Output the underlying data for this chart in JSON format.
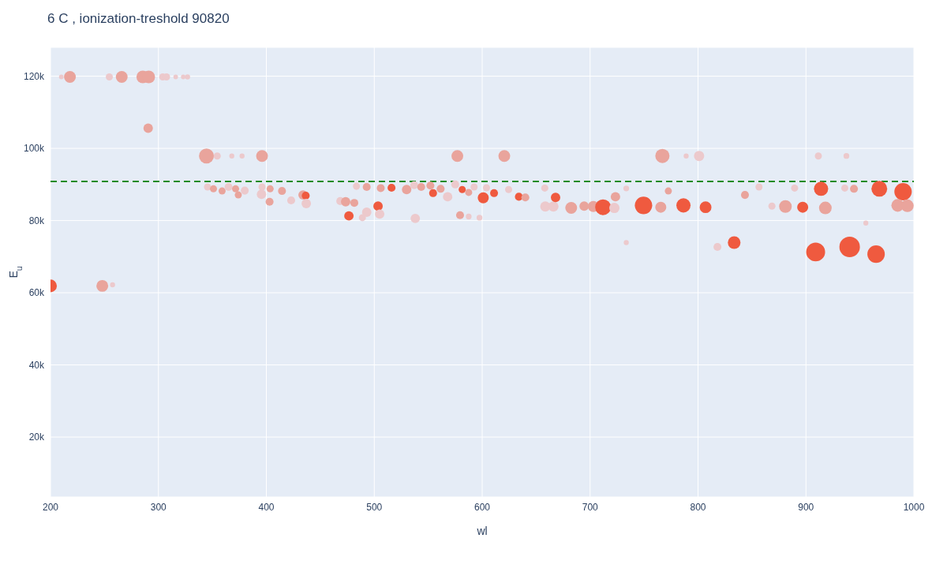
{
  "chart_data": {
    "type": "bubble",
    "title": "6 C , ionization-treshold 90820",
    "xlabel": "wl",
    "ylabel": "E$_{u}$",
    "xlim": [
      200,
      1000
    ],
    "xticks": [
      200,
      300,
      400,
      500,
      600,
      700,
      800,
      900,
      1000
    ],
    "ylim": [
      3400,
      128000
    ],
    "yticks": [
      {
        "value": 20000,
        "label": "20k"
      },
      {
        "value": 40000,
        "label": "40k"
      },
      {
        "value": 60000,
        "label": "60k"
      },
      {
        "value": 80000,
        "label": "80k"
      },
      {
        "value": 100000,
        "label": "100k"
      },
      {
        "value": 120000,
        "label": "120k"
      }
    ],
    "grid": true,
    "ref_lines": [
      {
        "axis": "y",
        "value": 90820,
        "color": "#228b22",
        "line_style": "dashed"
      }
    ],
    "x": [
      210,
      218,
      254.5,
      266,
      285.5,
      291,
      304,
      307.5,
      316,
      323,
      327,
      290.5,
      344.5,
      354.5,
      368,
      377.5,
      396,
      200,
      248,
      257.5,
      345.5,
      351,
      359,
      365,
      371.5,
      374,
      380,
      396,
      395.5,
      403.5,
      403,
      414.5,
      434,
      436.5,
      423,
      437,
      468.5,
      473.5,
      481.5,
      476.5,
      489,
      493,
      503.5,
      505,
      483.5,
      493,
      506,
      516,
      530,
      537,
      543.5,
      552,
      554.5,
      561.5,
      568,
      575,
      581.5,
      587.5,
      592.5,
      601,
      604,
      611,
      538,
      579.5,
      587.5,
      597.5,
      577,
      620.5,
      624.5,
      634,
      640,
      658,
      658.5,
      666,
      668,
      682.5,
      694.5,
      703,
      712,
      722.5,
      723.5,
      733.5,
      749.5,
      765.5,
      786.5,
      807,
      767,
      801,
      789,
      772.5,
      843.5,
      856.5,
      868.5,
      881,
      897,
      918,
      911.5,
      937.5,
      914,
      889.5,
      936,
      944.5,
      968,
      990,
      985,
      994,
      955.5,
      733.5,
      818,
      833.5,
      909,
      940.5,
      965
    ],
    "values": [
      119800,
      119800,
      119800,
      119800,
      119800,
      119800,
      119800,
      119800,
      119800,
      119800,
      119800,
      105600,
      97900,
      97900,
      97900,
      97900,
      97900,
      61900,
      61900,
      62200,
      89300,
      88800,
      88200,
      89300,
      88800,
      87100,
      88300,
      89300,
      87300,
      88800,
      85200,
      88200,
      87100,
      86900,
      85600,
      84700,
      85400,
      85200,
      84900,
      81300,
      80800,
      82300,
      84000,
      81800,
      89500,
      89300,
      89000,
      89100,
      88600,
      89800,
      89300,
      89700,
      87600,
      88800,
      86600,
      90000,
      88600,
      87800,
      89300,
      86300,
      89100,
      87600,
      80600,
      81500,
      81100,
      80800,
      97900,
      97900,
      88600,
      86600,
      86400,
      89000,
      83900,
      83900,
      86400,
      83500,
      84000,
      83900,
      83700,
      83500,
      86600,
      88900,
      84200,
      83700,
      84200,
      83700,
      97900,
      97900,
      97900,
      88200,
      87100,
      89300,
      84000,
      83900,
      83700,
      83500,
      97900,
      97900,
      88800,
      89000,
      89000,
      88800,
      88800,
      88000,
      84200,
      84100,
      79300,
      73900,
      72700,
      73900,
      71300,
      72700,
      70700
    ],
    "sizes": [
      0.05,
      0.33,
      0.12,
      0.33,
      0.38,
      0.38,
      0.12,
      0.12,
      0.05,
      0.05,
      0.06,
      0.21,
      0.53,
      0.12,
      0.06,
      0.06,
      0.33,
      0.38,
      0.33,
      0.06,
      0.12,
      0.12,
      0.12,
      0.15,
      0.12,
      0.12,
      0.15,
      0.12,
      0.21,
      0.12,
      0.15,
      0.15,
      0.21,
      0.15,
      0.15,
      0.21,
      0.15,
      0.21,
      0.15,
      0.21,
      0.12,
      0.21,
      0.21,
      0.21,
      0.12,
      0.15,
      0.15,
      0.15,
      0.21,
      0.15,
      0.15,
      0.15,
      0.15,
      0.15,
      0.21,
      0.15,
      0.12,
      0.12,
      0.12,
      0.29,
      0.12,
      0.15,
      0.21,
      0.15,
      0.08,
      0.08,
      0.33,
      0.33,
      0.12,
      0.15,
      0.15,
      0.12,
      0.25,
      0.25,
      0.21,
      0.33,
      0.21,
      0.29,
      0.59,
      0.25,
      0.21,
      0.08,
      0.72,
      0.29,
      0.48,
      0.33,
      0.48,
      0.25,
      0.06,
      0.12,
      0.15,
      0.12,
      0.12,
      0.38,
      0.29,
      0.38,
      0.12,
      0.08,
      0.48,
      0.12,
      0.12,
      0.15,
      0.59,
      0.72,
      0.38,
      0.38,
      0.06,
      0.06,
      0.15,
      0.38,
      0.85,
      1,
      0.72
    ],
    "colors": [
      "#ecc9cc",
      "#e9a49c",
      "#ecc9cc",
      "#e9a49c",
      "#e9a49c",
      "#e9a49c",
      "#ecc9cc",
      "#ecc9cc",
      "#ecc9cc",
      "#ecc9cc",
      "#ecc9cc",
      "#e9a49c",
      "#e9a49c",
      "#ecc9cc",
      "#ecc9cc",
      "#ecc9cc",
      "#e9a49c",
      "#ef5a3f",
      "#e9a49c",
      "#ecc9cc",
      "#ecc9cc",
      "#e9a49c",
      "#e9a49c",
      "#ecc9cc",
      "#e9a49c",
      "#e9a49c",
      "#ecc9cc",
      "#ecc9cc",
      "#ecc9cc",
      "#e9a49c",
      "#e9a49c",
      "#e9a49c",
      "#e9a49c",
      "#ef5a3f",
      "#ecc9cc",
      "#ecc9cc",
      "#ecc9cc",
      "#e9a49c",
      "#e9a49c",
      "#ef5a3f",
      "#ecc9cc",
      "#ecc9cc",
      "#ef5a3f",
      "#ecc9cc",
      "#ecc9cc",
      "#e9a49c",
      "#e9a49c",
      "#ef5a3f",
      "#e9a49c",
      "#ecc9cc",
      "#e9a49c",
      "#e9a49c",
      "#ef5a3f",
      "#e9a49c",
      "#ecc9cc",
      "#ecc9cc",
      "#ef5a3f",
      "#e9a49c",
      "#ecc9cc",
      "#ef5a3f",
      "#ecc9cc",
      "#ef5a3f",
      "#ecc9cc",
      "#e9a49c",
      "#ecc9cc",
      "#ecc9cc",
      "#e9a49c",
      "#e9a49c",
      "#ecc9cc",
      "#ef5a3f",
      "#e9a49c",
      "#ecc9cc",
      "#ecc9cc",
      "#ecc9cc",
      "#ef5a3f",
      "#e9a49c",
      "#e9a49c",
      "#e9a49c",
      "#ef5a3f",
      "#ecc9cc",
      "#e9a49c",
      "#ecc9cc",
      "#ef5a3f",
      "#e9a49c",
      "#ef5a3f",
      "#ef5a3f",
      "#e9a49c",
      "#ecc9cc",
      "#ecc9cc",
      "#e9a49c",
      "#e9a49c",
      "#ecc9cc",
      "#ecc9cc",
      "#e9a49c",
      "#ef5a3f",
      "#e9a49c",
      "#ecc9cc",
      "#ecc9cc",
      "#ef5a3f",
      "#ecc9cc",
      "#ecc9cc",
      "#e9a49c",
      "#ef5a3f",
      "#ef5a3f",
      "#e9a49c",
      "#e9a49c",
      "#ecc9cc",
      "#ecc9cc",
      "#ecc9cc",
      "#ef5a3f",
      "#ef5a3f",
      "#ef5a3f",
      "#ef5a3f"
    ]
  }
}
